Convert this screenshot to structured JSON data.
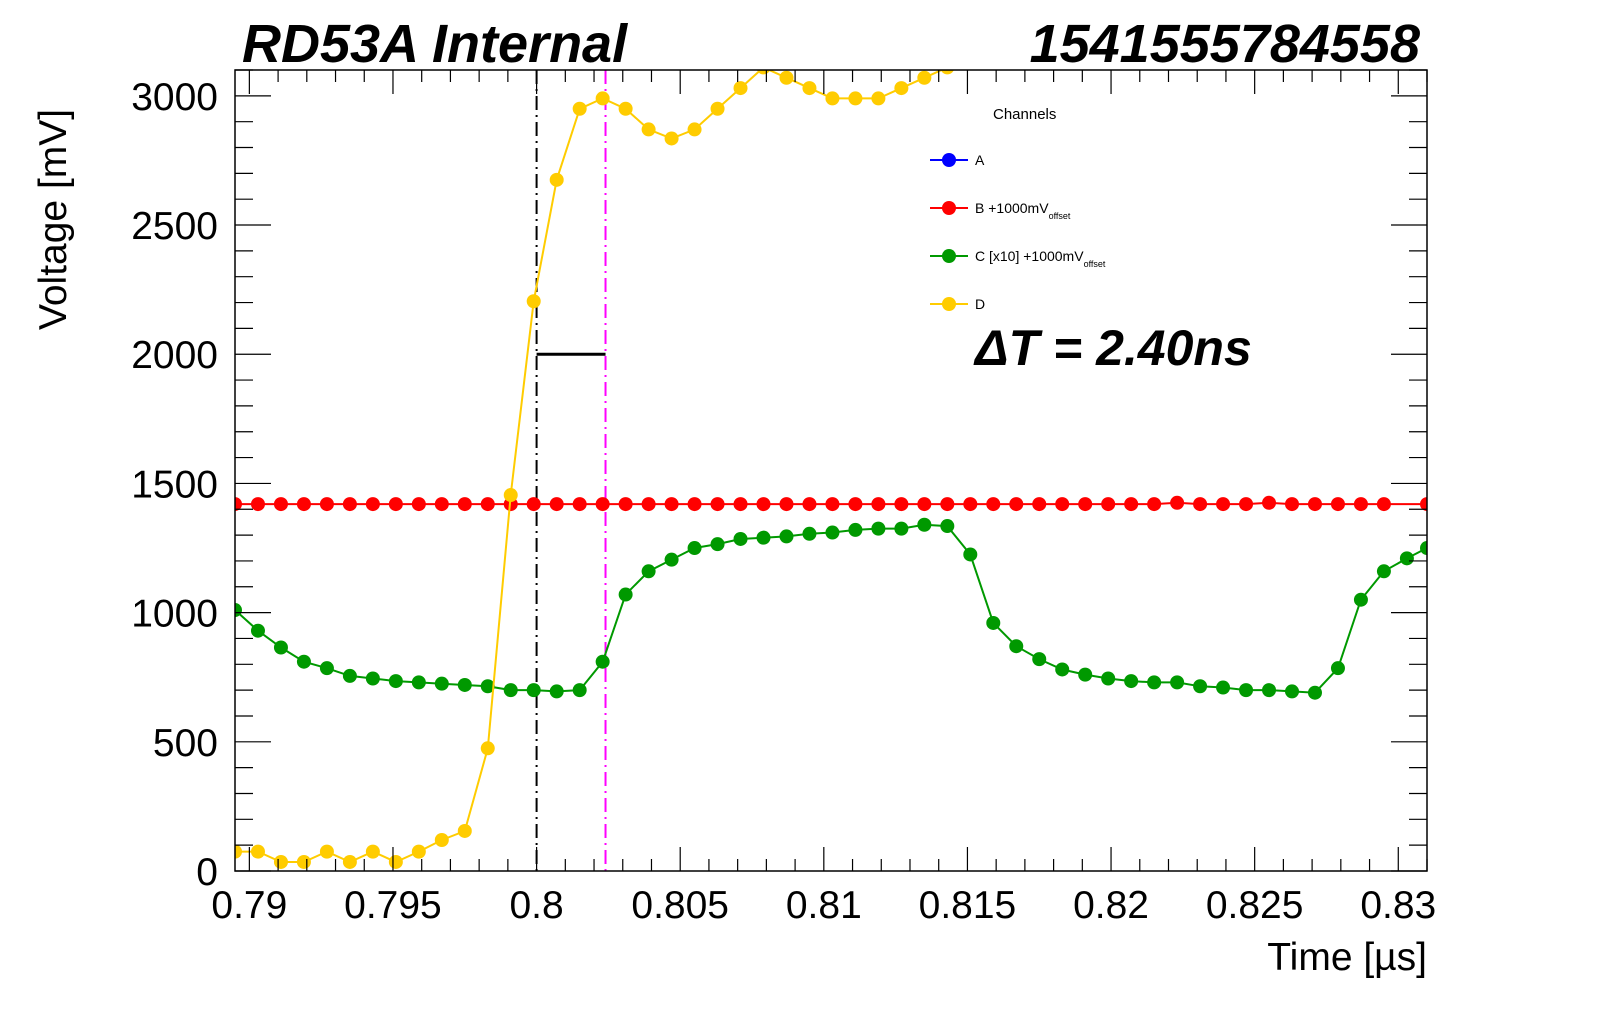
{
  "header": {
    "left_title": "RD53A Internal",
    "right_title": "1541555784558"
  },
  "annotation": {
    "delta_t": "ΔT = 2.40ns"
  },
  "colors": {
    "A": "#0000ff",
    "B": "#ff0000",
    "C": "#009900",
    "D": "#ffcc00",
    "trigger_line": "#000000",
    "measure_line": "#ff00ff"
  },
  "chart_data": {
    "type": "line",
    "xlabel": "Time [µs]",
    "ylabel": "Voltage [mV]",
    "xlim": [
      0.7895,
      0.831
    ],
    "ylim": [
      0,
      3100
    ],
    "xticks": [
      "0.79",
      "0.795",
      "0.8",
      "0.805",
      "0.81",
      "0.815",
      "0.82",
      "0.825",
      "0.83"
    ],
    "yticks": [
      "0",
      "500",
      "1000",
      "1500",
      "2000",
      "2500",
      "3000"
    ],
    "grid": false,
    "legend_position": "top-right",
    "legend": {
      "title": "Channels",
      "entries": [
        {
          "key": "A",
          "label": "A",
          "suffix": "",
          "sub": ""
        },
        {
          "key": "B",
          "label": "B +1000mV",
          "suffix": "",
          "sub": "offset"
        },
        {
          "key": "C",
          "label": "C [x10] +1000mV",
          "suffix": "",
          "sub": "offset"
        },
        {
          "key": "D",
          "label": "D",
          "suffix": "",
          "sub": ""
        }
      ]
    },
    "vertical_lines": [
      {
        "name": "trigger",
        "x": 0.8,
        "color_key": "trigger_line"
      },
      {
        "name": "measure",
        "x": 0.8024,
        "color_key": "measure_line"
      }
    ],
    "delta_segment": {
      "x1": 0.8,
      "x2": 0.8024,
      "y": 2000
    },
    "series": [
      {
        "key": "B",
        "x": [
          0.7895,
          0.7903,
          0.7911,
          0.7919,
          0.7927,
          0.7935,
          0.7943,
          0.7951,
          0.7959,
          0.7967,
          0.7975,
          0.7983,
          0.7991,
          0.7999,
          0.8007,
          0.8015,
          0.8023,
          0.8031,
          0.8039,
          0.8047,
          0.8055,
          0.8063,
          0.8071,
          0.8079,
          0.8087,
          0.8095,
          0.8103,
          0.8111,
          0.8119,
          0.8127,
          0.8135,
          0.8143,
          0.8151,
          0.8159,
          0.8167,
          0.8175,
          0.8183,
          0.8191,
          0.8199,
          0.8207,
          0.8215,
          0.8223,
          0.8231,
          0.8239,
          0.8247,
          0.8255,
          0.8263,
          0.8271,
          0.8279,
          0.8287,
          0.8295,
          0.831
        ],
        "y": [
          1420,
          1420,
          1420,
          1420,
          1420,
          1420,
          1420,
          1420,
          1420,
          1420,
          1420,
          1420,
          1420,
          1420,
          1420,
          1420,
          1420,
          1420,
          1420,
          1420,
          1420,
          1420,
          1420,
          1420,
          1420,
          1420,
          1420,
          1420,
          1420,
          1420,
          1420,
          1420,
          1420,
          1420,
          1420,
          1420,
          1420,
          1420,
          1420,
          1420,
          1420,
          1425,
          1420,
          1420,
          1420,
          1425,
          1420,
          1420,
          1420,
          1420,
          1420,
          1420
        ]
      },
      {
        "key": "C",
        "x": [
          0.7895,
          0.7903,
          0.7911,
          0.7919,
          0.7927,
          0.7935,
          0.7943,
          0.7951,
          0.7959,
          0.7967,
          0.7975,
          0.7983,
          0.7991,
          0.7999,
          0.8007,
          0.8015,
          0.8023,
          0.8031,
          0.8039,
          0.8047,
          0.8055,
          0.8063,
          0.8071,
          0.8079,
          0.8087,
          0.8095,
          0.8103,
          0.8111,
          0.8119,
          0.8127,
          0.8135,
          0.8143,
          0.8151,
          0.8159,
          0.8167,
          0.8175,
          0.8183,
          0.8191,
          0.8199,
          0.8207,
          0.8215,
          0.8223,
          0.8231,
          0.8239,
          0.8247,
          0.8255,
          0.8263,
          0.8271,
          0.8279,
          0.8287,
          0.8295,
          0.8303,
          0.831
        ],
        "y": [
          1010,
          930,
          865,
          810,
          785,
          755,
          745,
          735,
          730,
          725,
          720,
          715,
          700,
          700,
          695,
          700,
          810,
          1070,
          1160,
          1205,
          1250,
          1265,
          1285,
          1290,
          1295,
          1305,
          1310,
          1320,
          1325,
          1325,
          1340,
          1335,
          1225,
          960,
          870,
          820,
          780,
          760,
          745,
          735,
          730,
          730,
          715,
          710,
          700,
          700,
          695,
          690,
          785,
          1050,
          1160,
          1210,
          1250
        ]
      },
      {
        "key": "D",
        "x": [
          0.7895,
          0.7903,
          0.7911,
          0.7919,
          0.7927,
          0.7935,
          0.7943,
          0.7951,
          0.7959,
          0.7967,
          0.7975,
          0.7983,
          0.7991,
          0.7999,
          0.8007,
          0.8015,
          0.8023,
          0.8031,
          0.8039,
          0.8047,
          0.8055,
          0.8063,
          0.8071,
          0.8079,
          0.8087,
          0.8095,
          0.8103,
          0.8111,
          0.8119,
          0.8127,
          0.8135,
          0.8143,
          0.8151
        ],
        "y": [
          75,
          75,
          35,
          35,
          75,
          35,
          75,
          35,
          75,
          120,
          155,
          475,
          1455,
          2205,
          2675,
          2950,
          2990,
          2950,
          2870,
          2835,
          2870,
          2950,
          3030,
          3110,
          3070,
          3030,
          2990,
          2990,
          2990,
          3030,
          3070,
          3110,
          3150
        ]
      }
    ]
  }
}
